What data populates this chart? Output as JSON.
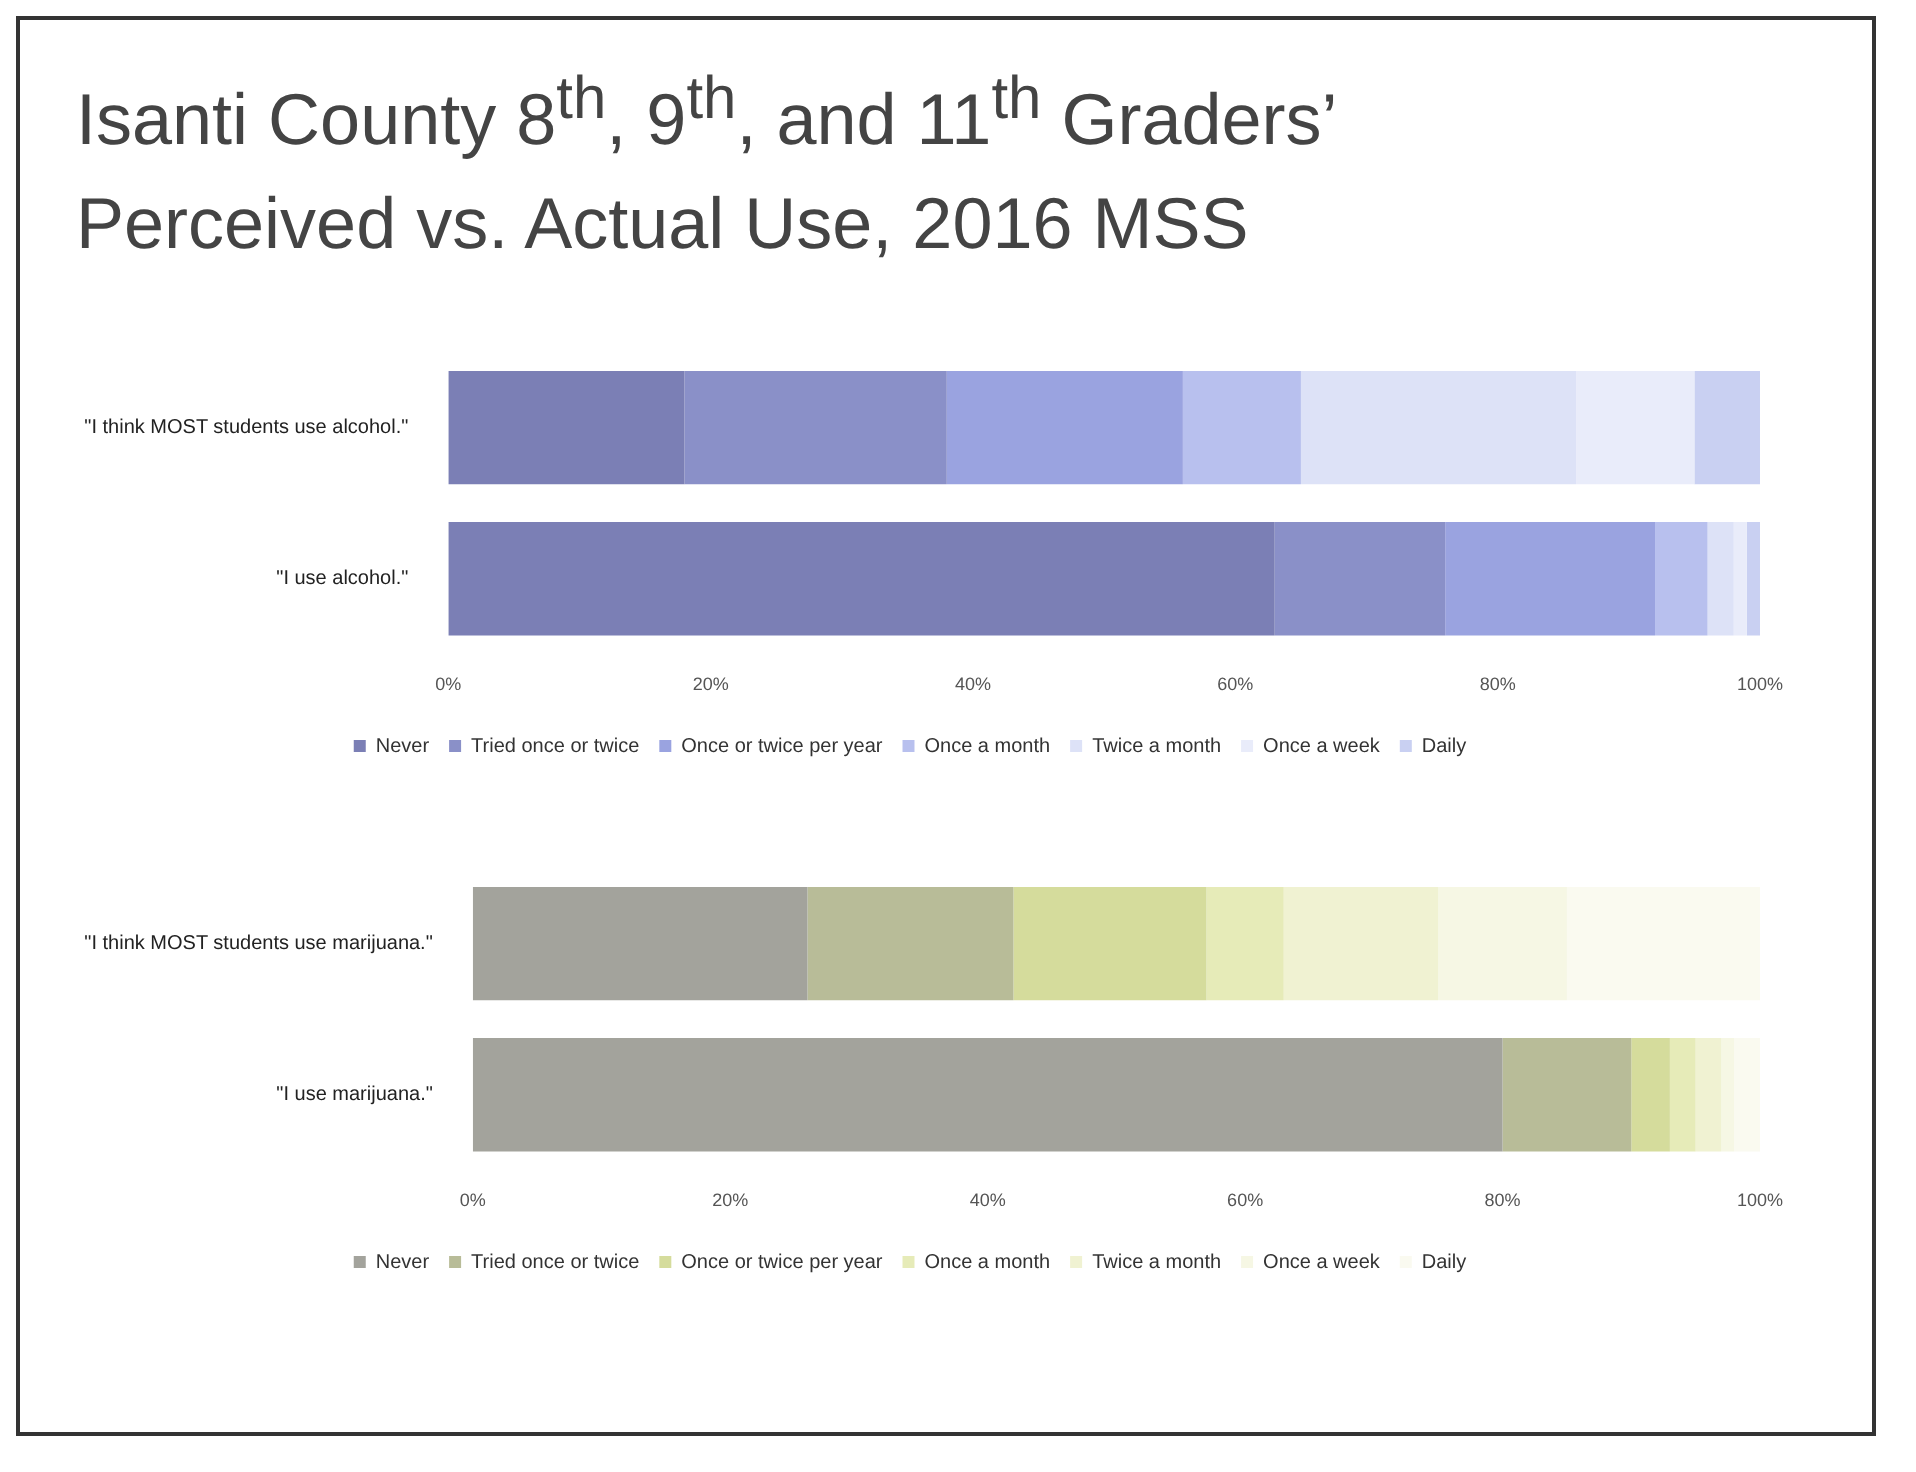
{
  "chart_data": [
    {
      "type": "bar",
      "title": "Isanti County 8$^{th}$, 9$^{th}$, and 11$^{th}$ Graders’ Perceived vs. Actual Use, 2016 MSS",
      "orientation": "horizontal",
      "stacked": true,
      "categories": [
        "\"I think MOST students use alcohol.\"",
        "\"I use alcohol.\""
      ],
      "series": [
        {
          "name": "Never",
          "color": "#7b7fb5",
          "values": [
            18,
            63
          ]
        },
        {
          "name": "Tried once or twice",
          "color": "#8a90c8",
          "values": [
            20,
            13
          ]
        },
        {
          "name": "Once or twice per year",
          "color": "#9aa3e0",
          "values": [
            18,
            16
          ]
        },
        {
          "name": "Once a month",
          "color": "#b8c0ee",
          "values": [
            9,
            4
          ]
        },
        {
          "name": "Twice a month",
          "color": "#dde2f7",
          "values": [
            21,
            2
          ]
        },
        {
          "name": "Once a week",
          "color": "#e9ecfa",
          "values": [
            9,
            1
          ]
        },
        {
          "name": "Daily",
          "color": "#c9d0f2",
          "values": [
            5,
            1
          ]
        }
      ],
      "xlim": [
        0,
        100
      ],
      "xticks": [
        {
          "value": 0,
          "label": "0%"
        },
        {
          "value": 20,
          "label": "20%"
        },
        {
          "value": 40,
          "label": "40%"
        },
        {
          "value": 60,
          "label": "60%"
        },
        {
          "value": 80,
          "label": "80%"
        },
        {
          "value": 100,
          "label": "100%"
        }
      ],
      "grid": false,
      "legend": "bottom"
    },
    {
      "type": "bar",
      "orientation": "horizontal",
      "stacked": true,
      "categories": [
        "\"I think MOST students use marijuana.\"",
        "\"I use marijuana.\""
      ],
      "series": [
        {
          "name": "Never",
          "color": "#a3a39c",
          "values": [
            26,
            80
          ]
        },
        {
          "name": "Tried once or twice",
          "color": "#b8bc98",
          "values": [
            16,
            10
          ]
        },
        {
          "name": "Once or twice per year",
          "color": "#d5dc9c",
          "values": [
            15,
            3
          ]
        },
        {
          "name": "Once a month",
          "color": "#e6ebb8",
          "values": [
            6,
            2
          ]
        },
        {
          "name": "Twice a month",
          "color": "#f0f2d2",
          "values": [
            12,
            2
          ]
        },
        {
          "name": "Once a week",
          "color": "#f6f7e4",
          "values": [
            10,
            1
          ]
        },
        {
          "name": "Daily",
          "color": "#fafaf0",
          "values": [
            15,
            2
          ]
        }
      ],
      "xlim": [
        0,
        100
      ],
      "xticks": [
        {
          "value": 0,
          "label": "0%"
        },
        {
          "value": 20,
          "label": "20%"
        },
        {
          "value": 40,
          "label": "40%"
        },
        {
          "value": 60,
          "label": "60%"
        },
        {
          "value": 80,
          "label": "80%"
        },
        {
          "value": 100,
          "label": "100%"
        }
      ],
      "grid": false,
      "legend": "bottom"
    }
  ]
}
